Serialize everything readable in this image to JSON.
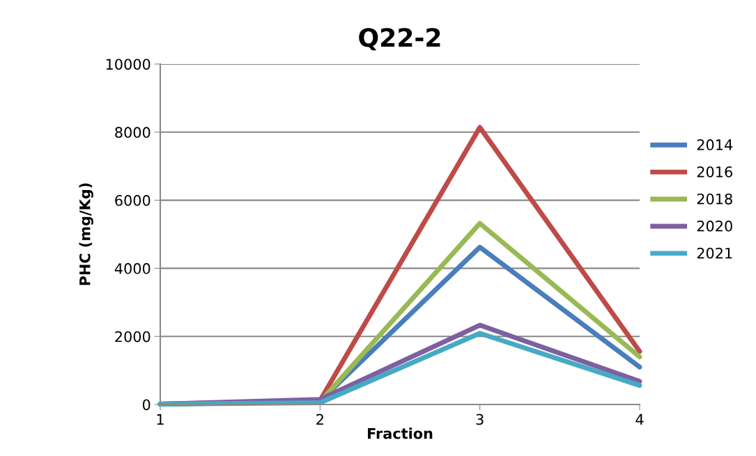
{
  "chart_data": {
    "type": "line",
    "title": "Q22-2",
    "xlabel": "Fraction",
    "ylabel": "PHC (mg/Kg)",
    "x": [
      1,
      2,
      3,
      4
    ],
    "series": [
      {
        "name": "2014",
        "color": "#4a7ebb",
        "values": [
          10,
          100,
          4620,
          1100
        ]
      },
      {
        "name": "2016",
        "color": "#be4b48",
        "values": [
          10,
          120,
          8140,
          1560
        ]
      },
      {
        "name": "2018",
        "color": "#98b954",
        "values": [
          10,
          80,
          5320,
          1400
        ]
      },
      {
        "name": "2020",
        "color": "#7d60a0",
        "values": [
          10,
          150,
          2330,
          680
        ]
      },
      {
        "name": "2021",
        "color": "#46aac5",
        "values": [
          10,
          50,
          2090,
          560
        ]
      }
    ],
    "xlim": [
      1,
      4
    ],
    "xticks": [
      1,
      2,
      3,
      4
    ],
    "ylim": [
      0,
      10000
    ],
    "yticks": [
      0,
      2000,
      4000,
      6000,
      8000,
      10000
    ],
    "grid": "y",
    "legend": "right",
    "marker": "none",
    "line_style": "solid"
  }
}
